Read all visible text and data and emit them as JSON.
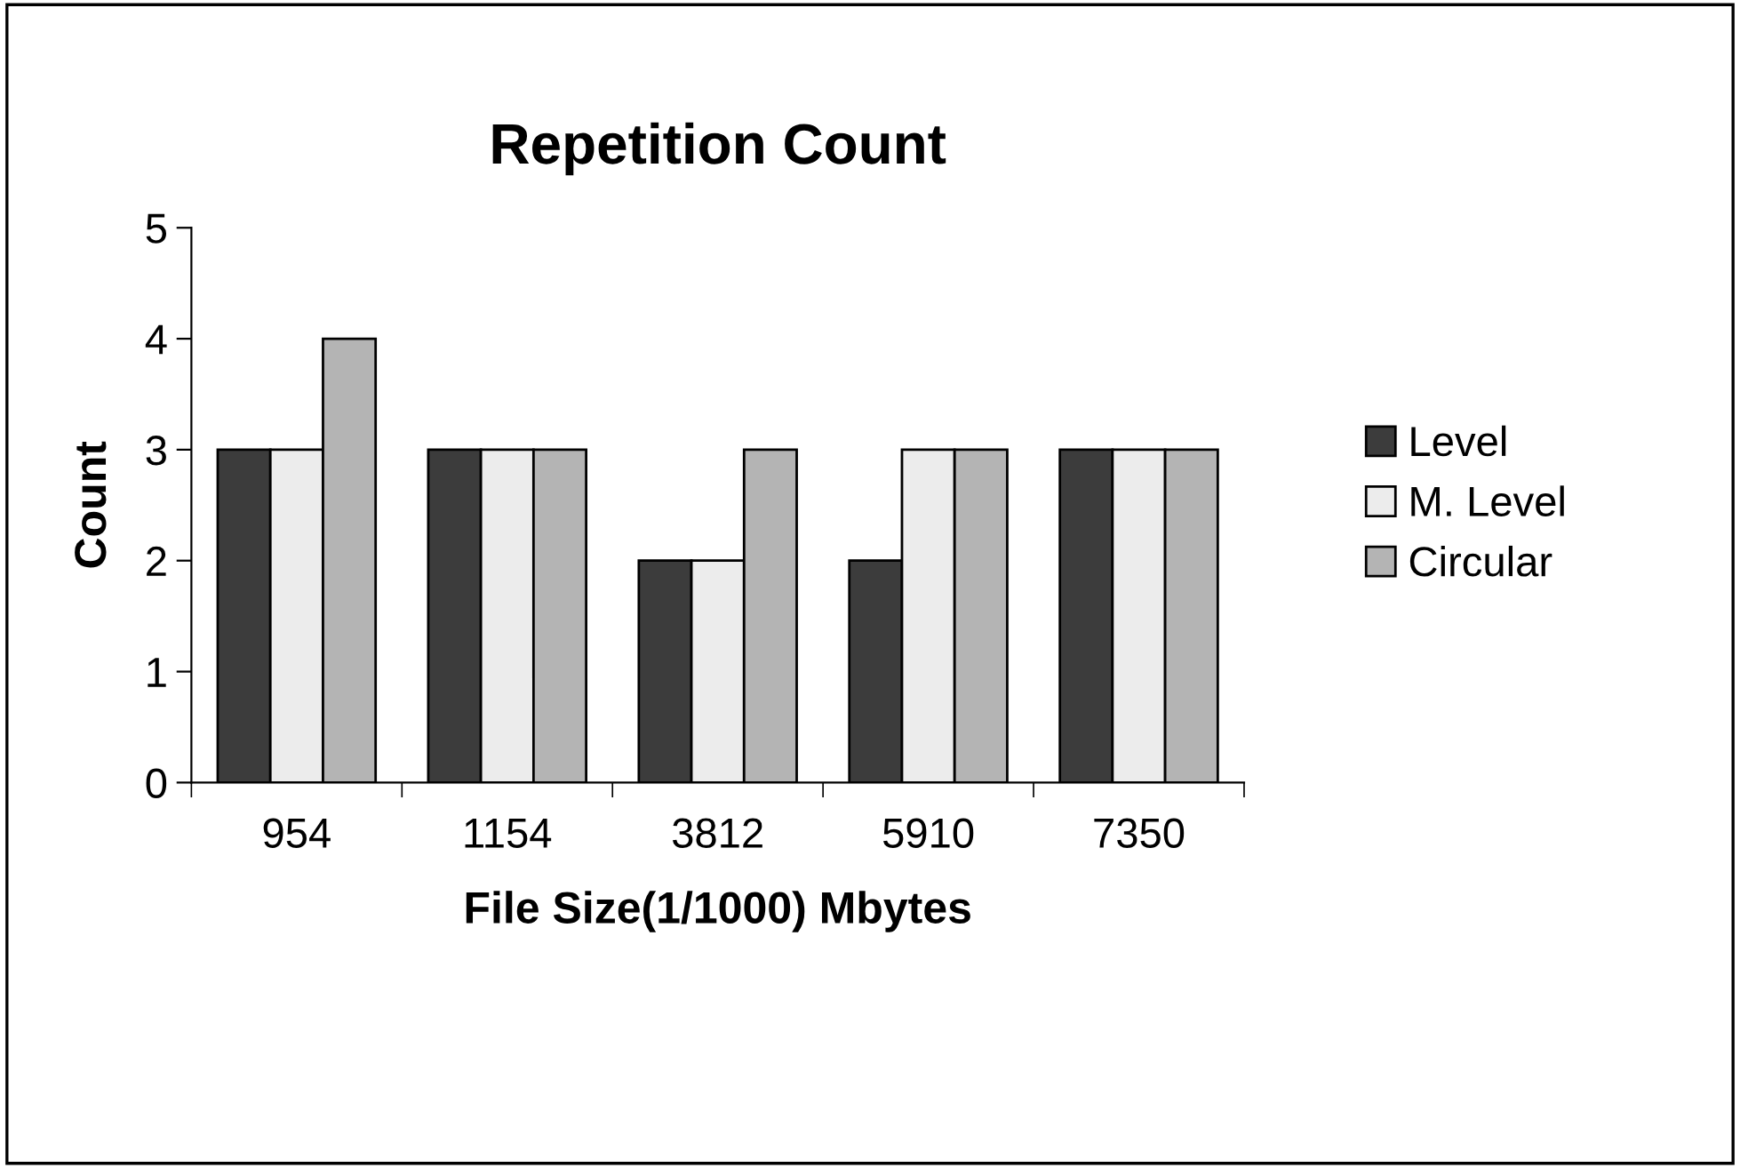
{
  "chart_data": {
    "type": "bar",
    "title": "Repetition Count",
    "xlabel": "File Size(1/1000) Mbytes",
    "ylabel": "Count",
    "categories": [
      "954",
      "1154",
      "3812",
      "5910",
      "7350"
    ],
    "series": [
      {
        "name": "Level",
        "color": "#3c3c3c",
        "values": [
          3,
          3,
          2,
          2,
          3
        ]
      },
      {
        "name": "M. Level",
        "color": "#ececec",
        "values": [
          3,
          3,
          2,
          3,
          3
        ]
      },
      {
        "name": "Circular",
        "color": "#b4b4b4",
        "values": [
          4,
          3,
          3,
          3,
          3
        ]
      }
    ],
    "ylim": [
      0,
      5
    ],
    "yticks": [
      0,
      1,
      2,
      3,
      4,
      5
    ],
    "grid": false,
    "legend": "right"
  }
}
